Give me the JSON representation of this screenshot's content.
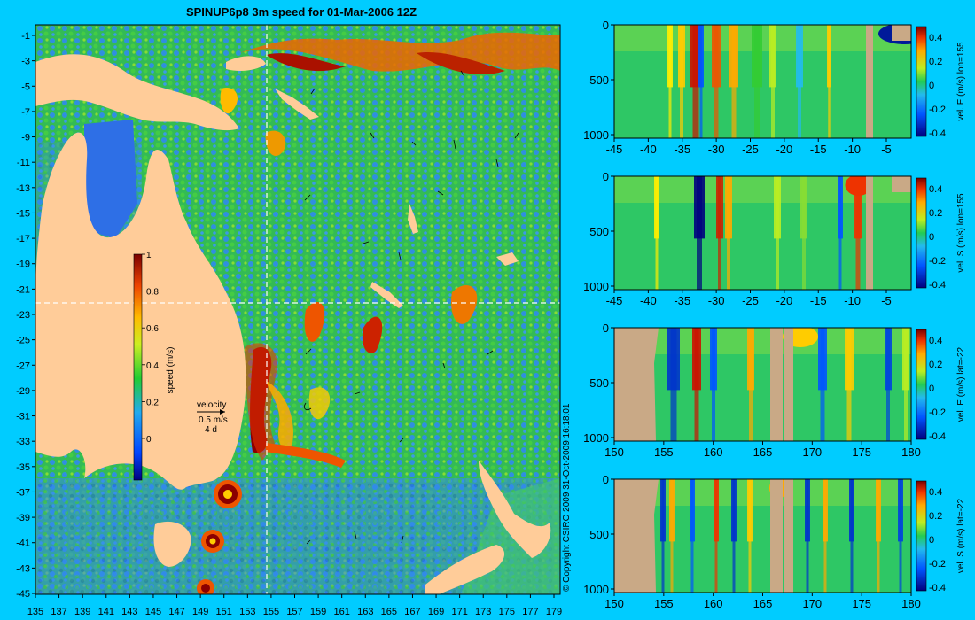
{
  "main_map": {
    "title": "SPINUP6p8 3m speed for 01-Mar-2006 12Z",
    "lat_ticks": [
      "-1",
      "-3",
      "-5",
      "-7",
      "-9",
      "-11",
      "-13",
      "-15",
      "-17",
      "-19",
      "-21",
      "-23",
      "-25",
      "-27",
      "-29",
      "-31",
      "-33",
      "-35",
      "-37",
      "-39",
      "-41",
      "-43",
      "-45"
    ],
    "lon_ticks": [
      "135",
      "137",
      "139",
      "141",
      "143",
      "145",
      "147",
      "149",
      "151",
      "153",
      "155",
      "157",
      "159",
      "161",
      "163",
      "165",
      "167",
      "169",
      "171",
      "173",
      "175",
      "177",
      "179"
    ],
    "colorbar": {
      "label": "speed (m/s)",
      "ticks": [
        "1",
        "0.8",
        "0.6",
        "0.4",
        "0.2",
        "0"
      ]
    },
    "velocity_key": {
      "title": "velocity",
      "speed": "0.5 m/s",
      "duration": "4 d"
    },
    "section_lines": {
      "lon": 155,
      "lat": -22
    },
    "colors": {
      "land": "#ffcc99",
      "low": "#3366ff",
      "mid": "#22bb44",
      "high": "#cc2200",
      "section_line": "#ffffff"
    }
  },
  "copyright": "© Copyright CSIRO 2009   31-Oct-2009 16:18:01",
  "sections": [
    {
      "label": "vel. E (m/s) lon=155",
      "y_ticks": [
        "0",
        "500",
        "1000"
      ],
      "x_ticks": [
        "-45",
        "-40",
        "-35",
        "-30",
        "-25",
        "-20",
        "-15",
        "-10",
        "-5"
      ],
      "cb_ticks": [
        "0.4",
        "0.2",
        "0",
        "-0.2",
        "-0.4"
      ]
    },
    {
      "label": "vel. S (m/s) lon=155",
      "y_ticks": [
        "0",
        "500",
        "1000"
      ],
      "x_ticks": [
        "-45",
        "-40",
        "-35",
        "-30",
        "-25",
        "-20",
        "-15",
        "-10",
        "-5"
      ],
      "cb_ticks": [
        "0.4",
        "0.2",
        "0",
        "-0.2",
        "-0.4"
      ]
    },
    {
      "label": "vel. E (m/s) lat=-22",
      "y_ticks": [
        "0",
        "500",
        "1000"
      ],
      "x_ticks": [
        "150",
        "155",
        "160",
        "165",
        "170",
        "175",
        "180"
      ],
      "cb_ticks": [
        "0.4",
        "0.2",
        "0",
        "-0.2",
        "-0.4"
      ]
    },
    {
      "label": "vel. S (m/s) lat=-22",
      "y_ticks": [
        "0",
        "500",
        "1000"
      ],
      "x_ticks": [
        "150",
        "155",
        "160",
        "165",
        "170",
        "175",
        "180"
      ],
      "cb_ticks": [
        "0.4",
        "0.2",
        "0",
        "-0.2",
        "-0.4"
      ]
    }
  ]
}
